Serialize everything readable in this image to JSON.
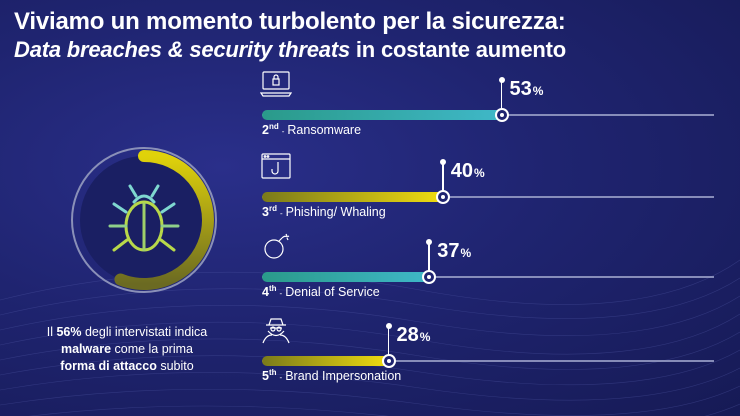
{
  "title": {
    "line1": "Viviamo un momento turbolento per la sicurezza:",
    "line2_italic": "Data breaches & security threats",
    "line2_rest": " in costante aumento"
  },
  "gauge": {
    "percent": 56,
    "icon": "bug-icon",
    "colors": {
      "track": "#8a90b8",
      "fill_start": "#e0d20a",
      "fill_end": "#6b6a22"
    }
  },
  "caption": {
    "part1": "Il ",
    "bold1": "56%",
    "part2": " degli intervistati indica",
    "bold2": "malware",
    "part3": " come la prima",
    "bold3": "forma di attacco",
    "part4": " subito"
  },
  "threats": [
    {
      "rank": "2",
      "suffix": "nd",
      "sep": "-",
      "label": "Ransomware",
      "value": 53,
      "unit": "%",
      "icon": "laptop-lock-icon",
      "color": "teal"
    },
    {
      "rank": "3",
      "suffix": "rd",
      "sep": "-",
      "label": "Phishing/ Whaling",
      "value": 40,
      "unit": "%",
      "icon": "browser-hook-icon",
      "color": "yellow"
    },
    {
      "rank": "4",
      "suffix": "th",
      "sep": "-",
      "label": "Denial of Service",
      "value": 37,
      "unit": "%",
      "icon": "bomb-icon",
      "color": "teal"
    },
    {
      "rank": "5",
      "suffix": "th",
      "sep": "-",
      "label": "Brand Impersonation",
      "value": 28,
      "unit": "%",
      "icon": "spy-icon",
      "color": "yellow"
    }
  ],
  "colors": {
    "teal_start": "#2a9a8a",
    "teal_end": "#3fb8c8",
    "yellow_start": "#7a7a1a",
    "yellow_end": "#f0dc10",
    "track": "#9aa0c8"
  }
}
